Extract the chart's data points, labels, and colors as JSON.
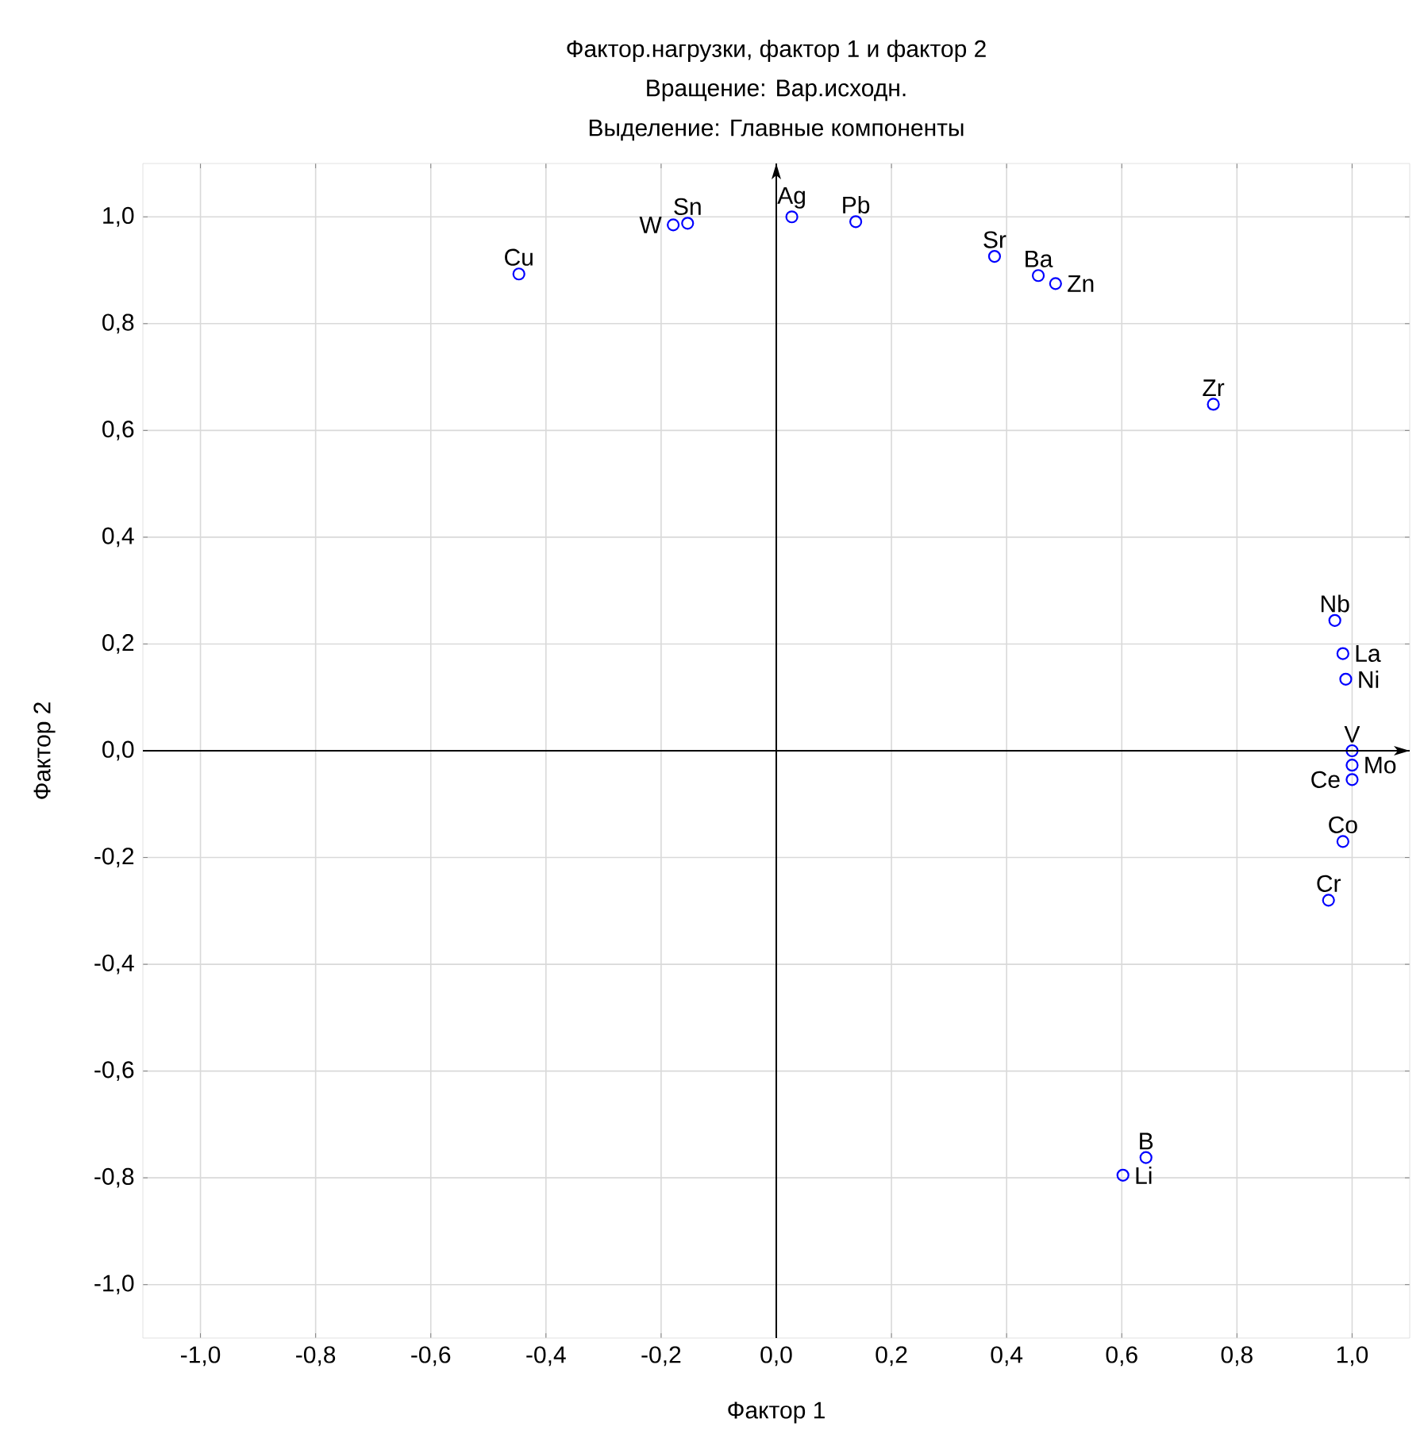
{
  "chart_data": {
    "type": "scatter",
    "title": "Фактор.нагрузки, фактор 1 и фактор   2",
    "subtitle": "Вращение: Вар.исходн.",
    "xlabel": "Фактор 1",
    "ylabel": "Фактор 2",
    "series": [
      {
        "color": "#0000ff",
        "x": [
          -0.447,
          -0.179,
          -0.154,
          0.027,
          0.138,
          0.379,
          0.455,
          0.485,
          0.759,
          0.97,
          0.984,
          0.989,
          1.0,
          1.0,
          1.0,
          0.984,
          0.959,
          0.642,
          0.602
        ],
        "values": [
          0.893,
          0.985,
          0.988,
          1.0,
          0.991,
          0.926,
          0.89,
          0.875,
          0.649,
          0.244,
          0.182,
          0.134,
          0.0,
          -0.027,
          -0.054,
          -0.17,
          -0.28,
          -0.762,
          -0.795
        ]
      }
    ],
    "annotations": [
      "Выделение: Главные компоненты",
      {
        "text": "Cu",
        "x": -0.447,
        "y": 0.893
      },
      {
        "text": "W",
        "x": -0.179,
        "y": 0.985
      },
      {
        "text": "Sn",
        "x": -0.154,
        "y": 0.988
      },
      {
        "text": "Ag",
        "x": 0.027,
        "y": 1.0
      },
      {
        "text": "Pb",
        "x": 0.138,
        "y": 0.991
      },
      {
        "text": "Sr",
        "x": 0.379,
        "y": 0.926
      },
      {
        "text": "Ba",
        "x": 0.455,
        "y": 0.89
      },
      {
        "text": "Zn",
        "x": 0.485,
        "y": 0.875
      },
      {
        "text": "Zr",
        "x": 0.759,
        "y": 0.649
      },
      {
        "text": "Nb",
        "x": 0.97,
        "y": 0.244
      },
      {
        "text": "La",
        "x": 0.984,
        "y": 0.182
      },
      {
        "text": "Ni",
        "x": 0.989,
        "y": 0.134
      },
      {
        "text": "V",
        "x": 1.0,
        "y": 0.0
      },
      {
        "text": "Mo",
        "x": 1.0,
        "y": -0.027
      },
      {
        "text": "Ce",
        "x": 1.0,
        "y": -0.054
      },
      {
        "text": "Co",
        "x": 0.984,
        "y": -0.17
      },
      {
        "text": "Cr",
        "x": 0.959,
        "y": -0.28
      },
      {
        "text": "B",
        "x": 0.642,
        "y": -0.762
      },
      {
        "text": "Li",
        "x": 0.602,
        "y": -0.795
      }
    ],
    "xlim": [
      -1.1,
      1.1
    ],
    "ylim": [
      -1.1,
      1.1
    ],
    "xticks": [
      {
        "value": -1.0,
        "label": "-1,0"
      },
      {
        "value": -0.8,
        "label": "-0,8"
      },
      {
        "value": -0.6,
        "label": "-0,6"
      },
      {
        "value": -0.4,
        "label": "-0,4"
      },
      {
        "value": -0.2,
        "label": "-0,2"
      },
      {
        "value": 0.0,
        "label": "0,0"
      },
      {
        "value": 0.2,
        "label": "0,2"
      },
      {
        "value": 0.4,
        "label": "0,4"
      },
      {
        "value": 0.6,
        "label": "0,6"
      },
      {
        "value": 0.8,
        "label": "0,8"
      },
      {
        "value": 1.0,
        "label": "1,0"
      }
    ],
    "yticks": [
      {
        "value": -1.0,
        "label": "-1,0"
      },
      {
        "value": -0.8,
        "label": "-0,8"
      },
      {
        "value": -0.6,
        "label": "-0,6"
      },
      {
        "value": -0.4,
        "label": "-0,4"
      },
      {
        "value": -0.2,
        "label": "-0,2"
      },
      {
        "value": 0.0,
        "label": "0,0"
      },
      {
        "value": 0.2,
        "label": "0,2"
      },
      {
        "value": 0.4,
        "label": "0,4"
      },
      {
        "value": 0.6,
        "label": "0,6"
      },
      {
        "value": 0.8,
        "label": "0,8"
      },
      {
        "value": 1.0,
        "label": "1,0"
      }
    ],
    "grid": true,
    "marker": "circle"
  }
}
